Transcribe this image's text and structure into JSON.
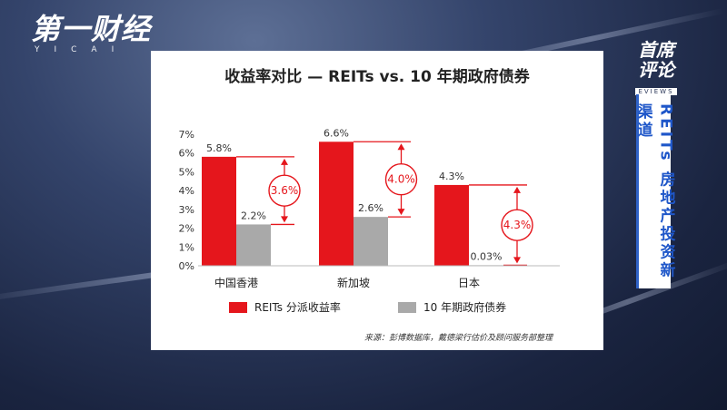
{
  "brand": {
    "channel_logo": "第一财经",
    "channel_sub": "YICAI",
    "show_logo_line1": "首席",
    "show_logo_line2": "评论",
    "show_logo_line3": "EVIEWS"
  },
  "side_caption": "REITs 房地产投资新渠道",
  "source_note": "来源：彭博数据库，戴德梁行估价及顾问服务部整理",
  "colors": {
    "reits": "#e5161c",
    "bond": "#a9a9a9",
    "diff": "#e5161c"
  },
  "chart_data": {
    "type": "bar",
    "title": "收益率对比 — REITs vs. 10 年期政府债券",
    "categories": [
      "中国香港",
      "新加坡",
      "日本"
    ],
    "ylim": [
      0,
      7
    ],
    "y_ticks": [
      "0%",
      "1%",
      "2%",
      "3%",
      "4%",
      "5%",
      "6%",
      "7%"
    ],
    "series": [
      {
        "name": "REITs 分派收益率",
        "values": [
          5.8,
          6.6,
          4.3
        ],
        "labels": [
          "5.8%",
          "6.6%",
          "4.3%"
        ]
      },
      {
        "name": "10 年期政府债券",
        "values": [
          2.2,
          2.6,
          0.03
        ],
        "labels": [
          "2.2%",
          "2.6%",
          "0.03%"
        ]
      }
    ],
    "differences": [
      "3.6%",
      "4.0%",
      "4.3%"
    ],
    "legend_position": "bottom",
    "grid": false
  }
}
